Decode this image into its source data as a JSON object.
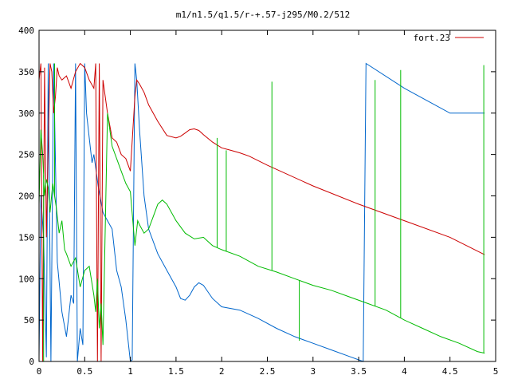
{
  "chart_data": {
    "type": "line",
    "title": "m1/n1.5/q1.5/r-+.57-j295/M0.2/512",
    "xlabel": "",
    "ylabel": "",
    "xlim": [
      0,
      5
    ],
    "ylim": [
      0,
      400
    ],
    "x_ticks": [
      0,
      0.5,
      1,
      1.5,
      2,
      2.5,
      3,
      3.5,
      4,
      4.5,
      5
    ],
    "x_tick_labels": [
      "0",
      "0.5",
      "1",
      "1.5",
      "2",
      "2.5",
      "3",
      "3.5",
      "4",
      "4.5",
      "5"
    ],
    "y_ticks": [
      0,
      50,
      100,
      150,
      200,
      250,
      300,
      350,
      400
    ],
    "y_tick_labels": [
      "0",
      "50",
      "100",
      "150",
      "200",
      "250",
      "300",
      "350",
      "400"
    ],
    "grid": false,
    "legend": {
      "position": "top-right",
      "entries": [
        {
          "label": "fort.23",
          "color": "#cc0000"
        }
      ]
    },
    "series": [
      {
        "name": "fort.23",
        "color": "#cc0000",
        "x": [
          0.0,
          0.02,
          0.04,
          0.06,
          0.08,
          0.1,
          0.12,
          0.14,
          0.16,
          0.18,
          0.2,
          0.22,
          0.25,
          0.3,
          0.35,
          0.4,
          0.45,
          0.5,
          0.55,
          0.6,
          0.62,
          0.64,
          0.66,
          0.68,
          0.7,
          0.75,
          0.8,
          0.85,
          0.9,
          0.95,
          1.0,
          1.05,
          1.07,
          1.1,
          1.15,
          1.2,
          1.3,
          1.4,
          1.5,
          1.55,
          1.6,
          1.65,
          1.7,
          1.75,
          1.8,
          1.9,
          2.0,
          2.1,
          2.2,
          2.3,
          2.5,
          3.0,
          3.5,
          4.0,
          4.5,
          4.88
        ],
        "y": [
          340,
          360,
          0,
          355,
          150,
          260,
          360,
          350,
          300,
          320,
          355,
          345,
          340,
          345,
          330,
          350,
          360,
          355,
          340,
          330,
          360,
          0,
          360,
          0,
          340,
          300,
          270,
          265,
          250,
          245,
          230,
          320,
          340,
          335,
          325,
          310,
          290,
          273,
          270,
          272,
          276,
          280,
          281,
          279,
          274,
          265,
          258,
          255,
          252,
          248,
          237,
          212,
          190,
          170,
          150,
          129
        ]
      },
      {
        "name": "",
        "color": "#00bb00",
        "x": [
          0.0,
          0.02,
          0.04,
          0.06,
          0.08,
          0.1,
          0.12,
          0.15,
          0.17,
          0.19,
          0.22,
          0.25,
          0.28,
          0.3,
          0.35,
          0.4,
          0.45,
          0.5,
          0.55,
          0.6,
          0.62,
          0.64,
          0.66,
          0.68,
          0.7,
          0.75,
          0.8,
          0.85,
          0.9,
          0.95,
          1.0,
          1.05,
          1.08,
          1.1,
          1.15,
          1.2,
          1.25,
          1.3,
          1.35,
          1.4,
          1.5,
          1.6,
          1.7,
          1.8,
          1.85,
          1.9,
          2.0,
          2.2,
          2.4,
          2.6,
          2.8,
          3.0,
          3.2,
          3.4,
          3.6,
          3.8,
          4.0,
          4.2,
          4.4,
          4.6,
          4.8,
          4.88
        ],
        "y": [
          190,
          280,
          250,
          200,
          220,
          210,
          180,
          215,
          200,
          185,
          155,
          170,
          135,
          130,
          115,
          125,
          90,
          110,
          115,
          80,
          60,
          100,
          40,
          70,
          20,
          300,
          260,
          245,
          230,
          215,
          205,
          140,
          170,
          165,
          155,
          160,
          175,
          190,
          195,
          190,
          170,
          155,
          148,
          150,
          145,
          140,
          135,
          127,
          115,
          108,
          100,
          92,
          86,
          78,
          70,
          62,
          50,
          40,
          30,
          22,
          12,
          10
        ],
        "spikes": [
          {
            "x": 0.05,
            "y": 0
          },
          {
            "x": 0.17,
            "y": 360
          },
          {
            "x": 1.95,
            "y": 270
          },
          {
            "x": 2.05,
            "y": 255
          },
          {
            "x": 2.55,
            "y": 338
          },
          {
            "x": 2.85,
            "y": 25
          },
          {
            "x": 3.68,
            "y": 340
          },
          {
            "x": 3.96,
            "y": 352
          },
          {
            "x": 4.87,
            "y": 358
          }
        ]
      },
      {
        "name": "",
        "color": "#0066cc",
        "x": [
          0.0,
          0.02,
          0.05,
          0.08,
          0.1,
          0.13,
          0.16,
          0.2,
          0.25,
          0.3,
          0.35,
          0.38,
          0.4,
          0.42,
          0.45,
          0.48,
          0.5,
          0.52,
          0.55,
          0.58,
          0.6,
          0.65,
          0.7,
          0.75,
          0.8,
          0.85,
          0.9,
          0.95,
          1.0,
          1.02,
          1.05,
          1.07,
          1.1,
          1.15,
          1.2,
          1.3,
          1.4,
          1.5,
          1.55,
          1.6,
          1.65,
          1.7,
          1.75,
          1.8,
          1.9,
          2.0,
          2.2,
          2.4,
          2.6,
          2.8,
          3.0,
          3.2,
          3.4,
          3.55,
          3.58,
          4.0,
          4.5,
          4.88
        ],
        "y": [
          5,
          200,
          150,
          5,
          360,
          0,
          360,
          120,
          60,
          30,
          80,
          70,
          360,
          0,
          40,
          20,
          360,
          300,
          270,
          240,
          250,
          210,
          180,
          170,
          160,
          110,
          90,
          50,
          0,
          2,
          360,
          340,
          280,
          200,
          160,
          130,
          110,
          90,
          76,
          74,
          80,
          90,
          95,
          92,
          76,
          66,
          62,
          52,
          40,
          30,
          22,
          14,
          6,
          0,
          360,
          330,
          300,
          300
        ]
      }
    ]
  }
}
